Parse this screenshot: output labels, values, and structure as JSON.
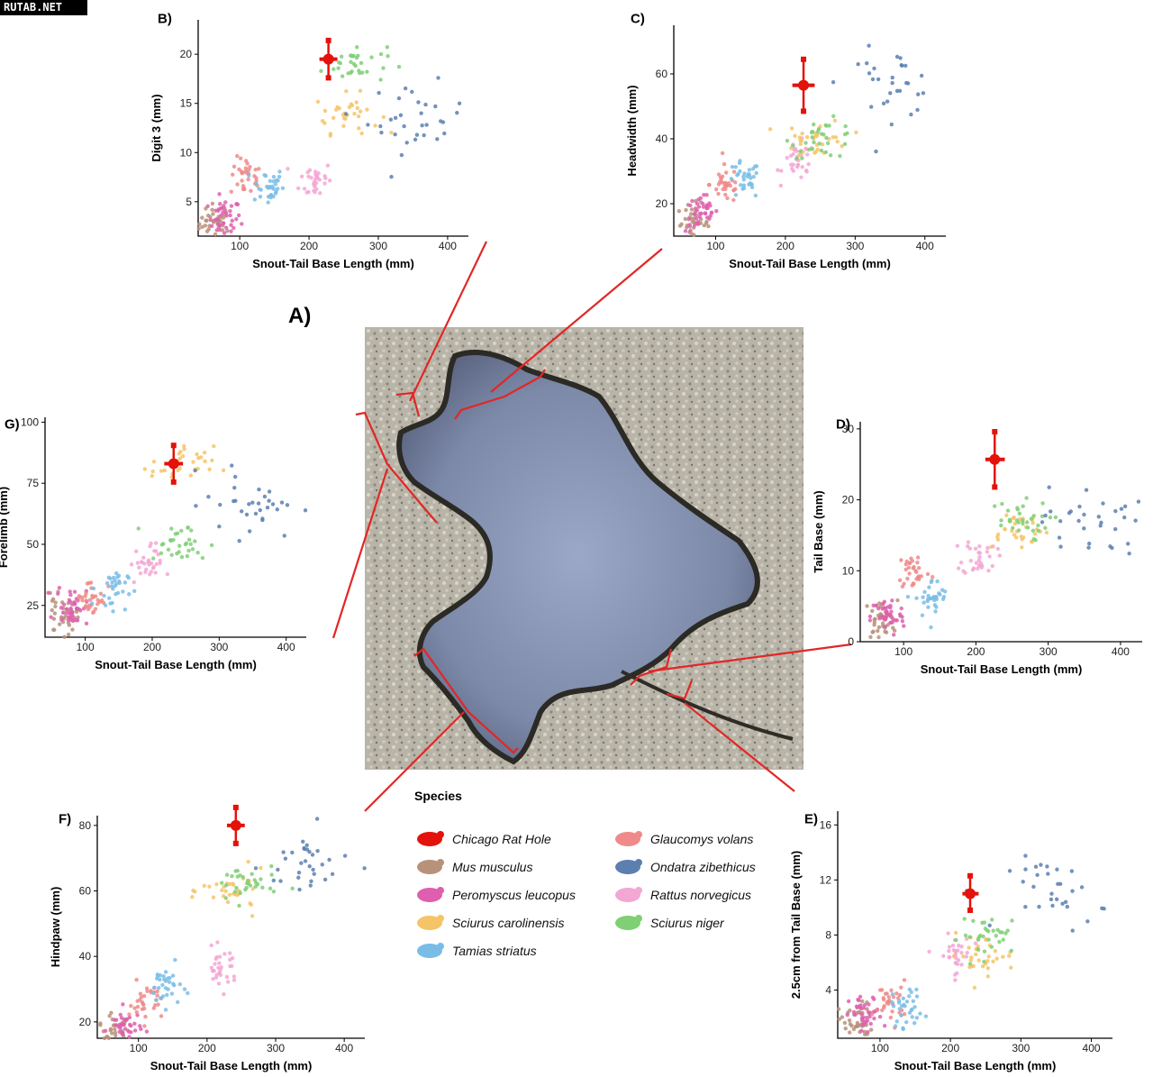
{
  "watermark": "RUTAB.NET",
  "main_label": "A)",
  "legend": {
    "title": "Species",
    "items": [
      {
        "name": "Chicago Rat Hole",
        "color": "#e3120b"
      },
      {
        "name": "Glaucomys volans",
        "color": "#f08a8a"
      },
      {
        "name": "Mus musculus",
        "color": "#b8917a"
      },
      {
        "name": "Ondatra zibethicus",
        "color": "#5c7fb0"
      },
      {
        "name": "Peromyscus leucopus",
        "color": "#df5fae"
      },
      {
        "name": "Rattus norvegicus",
        "color": "#f3a7d3"
      },
      {
        "name": "Sciurus carolinensis",
        "color": "#f5c469"
      },
      {
        "name": "Sciurus niger",
        "color": "#7fcf75"
      },
      {
        "name": "Tamias striatus",
        "color": "#79bde6"
      }
    ]
  },
  "chart_data": [
    {
      "panel": "B)",
      "type": "scatter",
      "xlabel": "Snout-Tail Base Length (mm)",
      "ylabel": "Digit 3 (mm)",
      "xlim": [
        40,
        430
      ],
      "ylim": [
        1.5,
        23.5
      ],
      "xticks": [
        100,
        200,
        300,
        400
      ],
      "yticks": [
        5,
        10,
        15,
        20
      ],
      "centroids": {
        "Mus musculus": [
          65,
          2.8
        ],
        "Peromyscus leucopus": [
          78,
          3.3
        ],
        "Glaucomys volans": [
          110,
          7.5
        ],
        "Tamias striatus": [
          140,
          6.6
        ],
        "Rattus norvegicus": [
          210,
          7.2
        ],
        "Sciurus carolinensis": [
          255,
          14
        ],
        "Sciurus niger": [
          265,
          19
        ],
        "Ondatra zibethicus": [
          355,
          13.5
        ]
      },
      "rat_hole": {
        "x": 228,
        "y": 19.5,
        "yerr": [
          17.6,
          21.4
        ],
        "xerr": [
          215,
          241
        ]
      }
    },
    {
      "panel": "C)",
      "type": "scatter",
      "xlabel": "Snout-Tail Base Length (mm)",
      "ylabel": "Headwidth (mm)",
      "xlim": [
        40,
        430
      ],
      "ylim": [
        10,
        75
      ],
      "xticks": [
        100,
        200,
        300,
        400
      ],
      "yticks": [
        20,
        40,
        60
      ],
      "centroids": {
        "Mus musculus": [
          68,
          14
        ],
        "Peromyscus leucopus": [
          80,
          17
        ],
        "Glaucomys volans": [
          115,
          26
        ],
        "Tamias striatus": [
          140,
          27
        ],
        "Rattus norvegicus": [
          220,
          33
        ],
        "Sciurus carolinensis": [
          245,
          40
        ],
        "Sciurus niger": [
          255,
          40
        ],
        "Ondatra zibethicus": [
          350,
          57
        ]
      },
      "rat_hole": {
        "x": 226,
        "y": 56.5,
        "yerr": [
          48.5,
          64.5
        ],
        "xerr": [
          210,
          242
        ]
      }
    },
    {
      "panel": "D)",
      "type": "scatter",
      "xlabel": "Snout-Tail Base Length (mm)",
      "ylabel": "Tail Base (mm)",
      "xlim": [
        40,
        430
      ],
      "ylim": [
        0,
        31
      ],
      "xticks": [
        100,
        200,
        300,
        400
      ],
      "yticks": [
        0,
        10,
        20,
        30
      ],
      "centroids": {
        "Mus musculus": [
          68,
          3
        ],
        "Peromyscus leucopus": [
          78,
          3.5
        ],
        "Glaucomys volans": [
          115,
          10
        ],
        "Tamias striatus": [
          140,
          6
        ],
        "Rattus norvegicus": [
          205,
          12
        ],
        "Sciurus carolinensis": [
          255,
          16
        ],
        "Sciurus niger": [
          255,
          17
        ],
        "Ondatra zibethicus": [
          360,
          17
        ]
      },
      "rat_hole": {
        "x": 226,
        "y": 25.7,
        "yerr": [
          21.8,
          29.6
        ],
        "xerr": [
          213,
          240
        ]
      }
    },
    {
      "panel": "E)",
      "type": "scatter",
      "xlabel": "Snout-Tail Base Length (mm)",
      "ylabel": "2.5cm from Tail Base (mm)",
      "xlim": [
        40,
        430
      ],
      "ylim": [
        0.5,
        17
      ],
      "xticks": [
        100,
        200,
        300,
        400
      ],
      "yticks": [
        4,
        8,
        12,
        16
      ],
      "centroids": {
        "Mus musculus": [
          65,
          1.6
        ],
        "Peromyscus leucopus": [
          80,
          2.1
        ],
        "Glaucomys volans": [
          115,
          3.2
        ],
        "Tamias striatus": [
          140,
          2.8
        ],
        "Rattus norvegicus": [
          205,
          6.5
        ],
        "Sciurus carolinensis": [
          245,
          6.5
        ],
        "Sciurus niger": [
          260,
          8
        ],
        "Ondatra zibethicus": [
          355,
          11
        ]
      },
      "rat_hole": {
        "x": 228,
        "y": 11,
        "yerr": [
          9.8,
          12.3
        ],
        "xerr": [
          217,
          240
        ]
      }
    },
    {
      "panel": "F)",
      "type": "scatter",
      "xlabel": "Snout-Tail Base Length (mm)",
      "ylabel": "Hindpaw (mm)",
      "xlim": [
        40,
        430
      ],
      "ylim": [
        15,
        83
      ],
      "xticks": [
        100,
        200,
        300,
        400
      ],
      "yticks": [
        20,
        40,
        60,
        80
      ],
      "centroids": {
        "Mus musculus": [
          65,
          16
        ],
        "Peromyscus leucopus": [
          80,
          18
        ],
        "Glaucomys volans": [
          110,
          26
        ],
        "Tamias striatus": [
          140,
          31
        ],
        "Rattus norvegicus": [
          220,
          36
        ],
        "Sciurus carolinensis": [
          240,
          60
        ],
        "Sciurus niger": [
          255,
          62
        ],
        "Ondatra zibethicus": [
          350,
          68
        ]
      },
      "rat_hole": {
        "x": 242,
        "y": 80,
        "yerr": [
          74.5,
          85.5
        ],
        "xerr": [
          229,
          255
        ]
      }
    },
    {
      "panel": "G)",
      "type": "scatter",
      "xlabel": "Snout-Tail Base Length (mm)",
      "ylabel": "Forelimb (mm)",
      "xlim": [
        40,
        430
      ],
      "ylim": [
        12,
        102
      ],
      "xticks": [
        100,
        200,
        300,
        400
      ],
      "yticks": [
        25,
        50,
        75,
        100
      ],
      "centroids": {
        "Mus musculus": [
          65,
          20
        ],
        "Peromyscus leucopus": [
          80,
          25
        ],
        "Glaucomys volans": [
          110,
          28
        ],
        "Tamias striatus": [
          140,
          32
        ],
        "Rattus norvegicus": [
          190,
          42
        ],
        "Sciurus carolinensis": [
          245,
          82
        ],
        "Sciurus niger": [
          240,
          50
        ],
        "Ondatra zibethicus": [
          350,
          67
        ]
      },
      "rat_hole": {
        "x": 232,
        "y": 83,
        "yerr": [
          75.5,
          90.5
        ],
        "xerr": [
          218,
          246
        ]
      }
    }
  ]
}
